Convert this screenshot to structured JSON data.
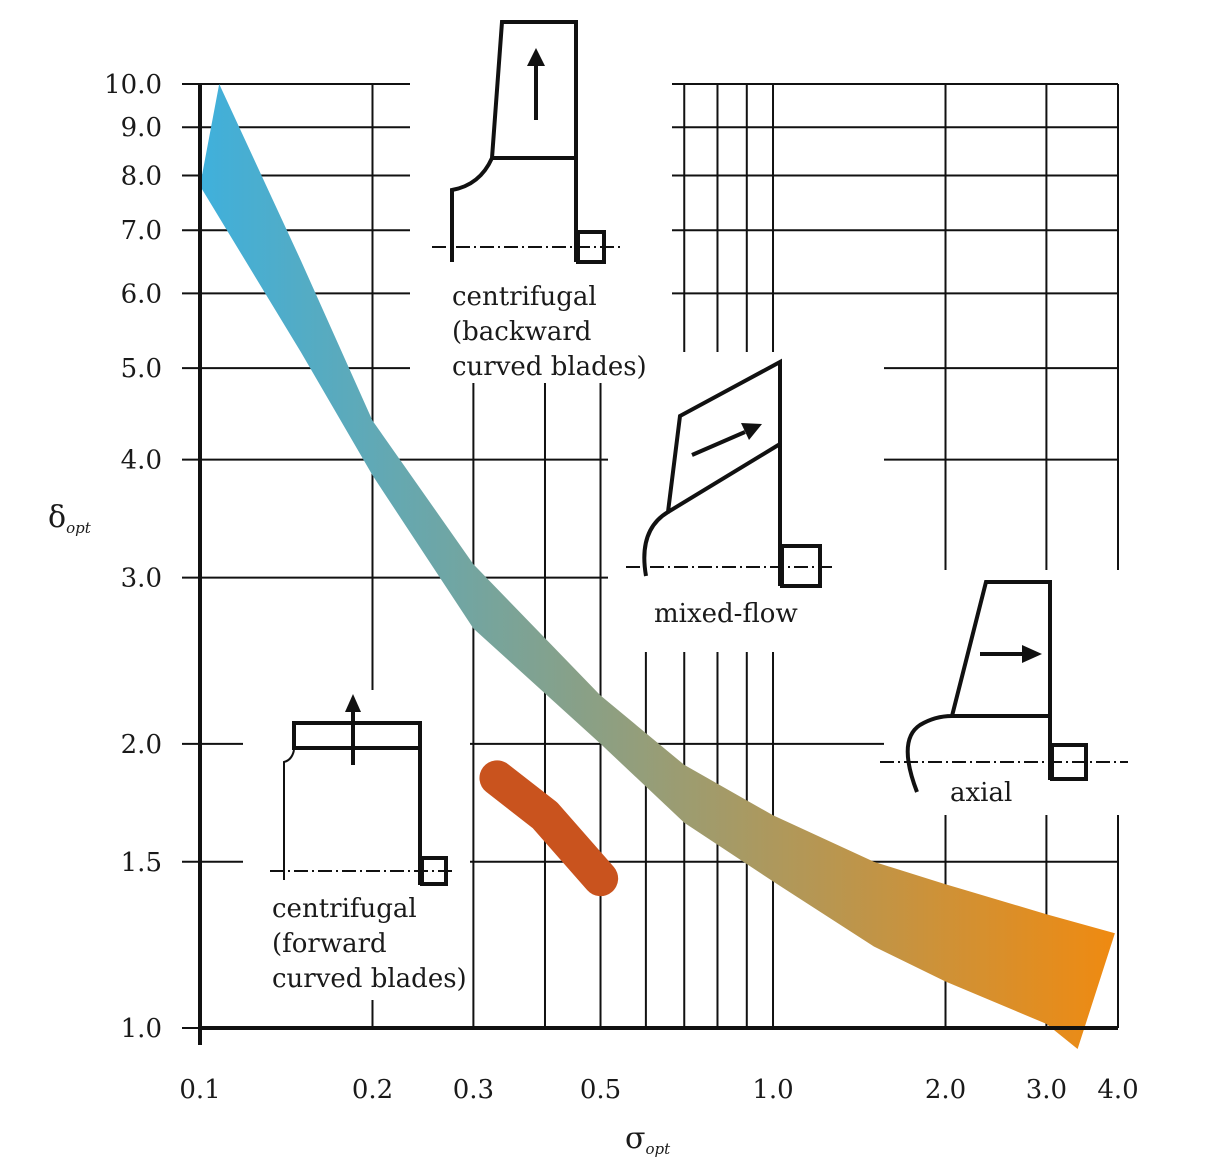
{
  "chart_data": {
    "type": "area",
    "x_scale": "log",
    "y_scale": "log",
    "xlim": [
      0.1,
      4.0
    ],
    "ylim": [
      1.0,
      10.0
    ],
    "xlabel": "σ",
    "xlabel_subscript": "opt",
    "ylabel": "δ",
    "ylabel_subscript": "opt",
    "x_ticks": [
      {
        "value": 0.1,
        "label": "0.1"
      },
      {
        "value": 0.2,
        "label": "0.2"
      },
      {
        "value": 0.3,
        "label": "0.3"
      },
      {
        "value": 0.5,
        "label": "0.5"
      },
      {
        "value": 1.0,
        "label": "1.0"
      },
      {
        "value": 2.0,
        "label": "2.0"
      },
      {
        "value": 3.0,
        "label": "3.0"
      },
      {
        "value": 4.0,
        "label": "4.0"
      }
    ],
    "y_ticks": [
      {
        "value": 1.0,
        "label": "1.0"
      },
      {
        "value": 1.5,
        "label": "1.5"
      },
      {
        "value": 2.0,
        "label": "2.0"
      },
      {
        "value": 3.0,
        "label": "3.0"
      },
      {
        "value": 4.0,
        "label": "4.0"
      },
      {
        "value": 5.0,
        "label": "5.0"
      },
      {
        "value": 6.0,
        "label": "6.0"
      },
      {
        "value": 7.0,
        "label": "7.0"
      },
      {
        "value": 8.0,
        "label": "8.0"
      },
      {
        "value": 9.0,
        "label": "9.0"
      },
      {
        "value": 10.0,
        "label": "10.0"
      }
    ],
    "x_gridlines": [
      0.2,
      0.3,
      0.4,
      0.5,
      0.6,
      0.7,
      0.8,
      0.9,
      1.0,
      2.0,
      3.0
    ],
    "y_gridlines": [
      1.5,
      2.0,
      3.0,
      4.0,
      5.0,
      6.0,
      7.0,
      8.0,
      9.0,
      10.0
    ],
    "bands": [
      {
        "name": "",
        "colors": [
          "#3fb0dc",
          "#f08a10"
        ],
        "upper": [
          [
            0.108,
            10.0
          ],
          [
            0.15,
            6.5
          ],
          [
            0.2,
            4.4
          ],
          [
            0.3,
            3.1
          ],
          [
            0.5,
            2.25
          ],
          [
            0.7,
            1.9
          ],
          [
            1.0,
            1.68
          ],
          [
            1.5,
            1.5
          ],
          [
            2.0,
            1.42
          ],
          [
            3.0,
            1.32
          ],
          [
            3.95,
            1.26
          ]
        ],
        "lower": [
          [
            0.1,
            7.8
          ],
          [
            0.15,
            5.2
          ],
          [
            0.2,
            3.85
          ],
          [
            0.3,
            2.65
          ],
          [
            0.5,
            2.0
          ],
          [
            0.7,
            1.65
          ],
          [
            1.0,
            1.43
          ],
          [
            1.5,
            1.22
          ],
          [
            2.0,
            1.12
          ],
          [
            3.0,
            1.01
          ],
          [
            3.4,
            0.95
          ]
        ]
      }
    ],
    "blobs": [
      {
        "name": "",
        "color": "#c9531e",
        "centerline": [
          [
            0.33,
            1.84
          ],
          [
            0.4,
            1.68
          ],
          [
            0.5,
            1.44
          ]
        ],
        "thickness": 1.09
      }
    ],
    "annotations": [
      {
        "id": "centrifugal_backward",
        "lines": [
          "centrifugal",
          "(backward",
          "curved blades)"
        ]
      },
      {
        "id": "mixed_flow",
        "lines": [
          "mixed-flow"
        ]
      },
      {
        "id": "axial",
        "lines": [
          "axial"
        ]
      },
      {
        "id": "centrifugal_forward",
        "lines": [
          "centrifugal",
          "(forward",
          "curved blades)"
        ]
      }
    ]
  }
}
